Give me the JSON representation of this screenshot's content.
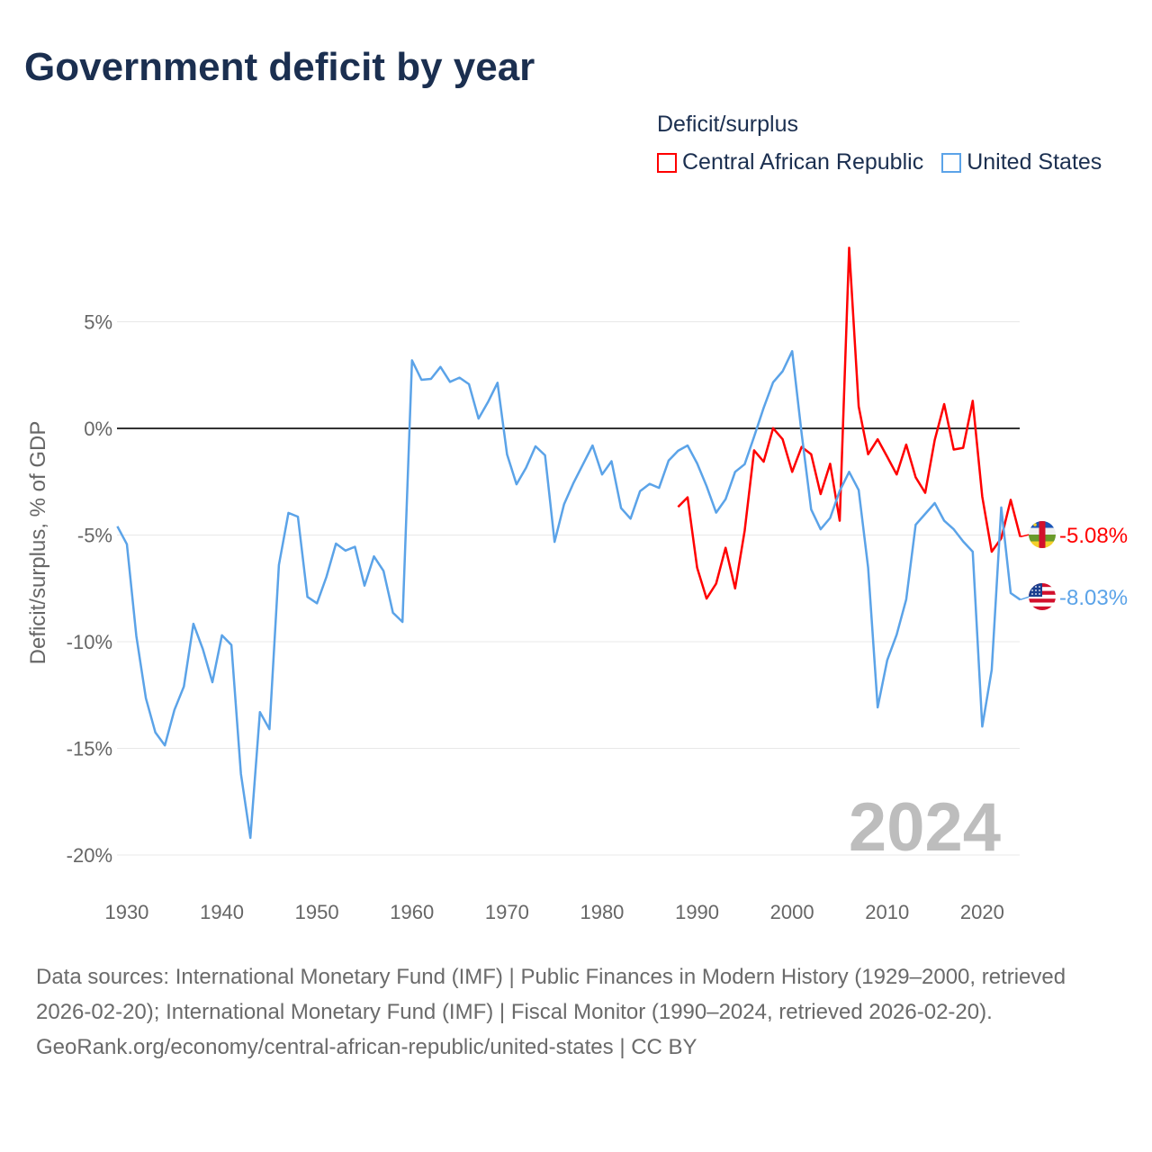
{
  "title": "Government deficit by year",
  "legend": {
    "title": "Deficit/surplus",
    "items": [
      {
        "label": "Central African Republic",
        "color": "#ff0000"
      },
      {
        "label": "United States",
        "color": "#5ba3e8"
      }
    ]
  },
  "chart_data": {
    "type": "line",
    "title": "Government deficit by year",
    "xlabel": "",
    "ylabel": "Deficit/surplus, % of GDP",
    "xlim": [
      1929,
      2024
    ],
    "ylim": [
      -20,
      8.6
    ],
    "x_ticks": [
      "1930",
      "1940",
      "1950",
      "1960",
      "1970",
      "1980",
      "1990",
      "2000",
      "2010",
      "2020"
    ],
    "y_ticks": [
      {
        "value": 5,
        "label": "5%"
      },
      {
        "value": 0,
        "label": "0%"
      },
      {
        "value": -5,
        "label": "-5%"
      },
      {
        "value": -10,
        "label": "-10%"
      },
      {
        "value": -15,
        "label": "-15%"
      },
      {
        "value": -20,
        "label": "-20%"
      }
    ],
    "grid": true,
    "year_watermark": "2024",
    "legend_position": "top-right",
    "series": [
      {
        "name": "Central African Republic",
        "color": "#ff0000",
        "flag": "central-african-republic-flag",
        "end_label": "-5.08%",
        "start_year": 1988,
        "values": [
          -3.68,
          -3.23,
          -6.53,
          -7.98,
          -7.28,
          -5.6,
          -7.5,
          -4.8,
          -1.03,
          -1.56,
          0.01,
          -0.51,
          -2.04,
          -0.87,
          -1.21,
          -3.08,
          -1.66,
          -4.33,
          8.47,
          1.03,
          -1.21,
          -0.51,
          -1.33,
          -2.16,
          -0.76,
          -2.29,
          -3.02,
          -0.54,
          1.14,
          -0.99,
          -0.91,
          1.29,
          -3.2,
          -5.78,
          -5.15,
          -3.35,
          -5.08
        ]
      },
      {
        "name": "United States",
        "color": "#5ba3e8",
        "flag": "united-states-flag",
        "end_label": "-8.03%",
        "start_year": 1929,
        "values": [
          -4.59,
          -5.43,
          -9.74,
          -12.65,
          -14.25,
          -14.86,
          -13.2,
          -12.1,
          -9.16,
          -10.35,
          -11.9,
          -9.7,
          -10.15,
          -16.2,
          -19.2,
          -13.3,
          -14.1,
          -6.4,
          -3.96,
          -4.14,
          -7.9,
          -8.2,
          -6.96,
          -5.4,
          -5.73,
          -5.55,
          -7.37,
          -6.0,
          -6.68,
          -8.64,
          -9.07,
          3.19,
          2.28,
          2.32,
          2.88,
          2.18,
          2.38,
          2.07,
          0.46,
          1.23,
          2.14,
          -1.22,
          -2.62,
          -1.85,
          -0.84,
          -1.26,
          -5.32,
          -3.56,
          -2.55,
          -1.68,
          -0.8,
          -2.16,
          -1.54,
          -3.74,
          -4.23,
          -2.94,
          -2.6,
          -2.79,
          -1.51,
          -1.05,
          -0.8,
          -1.64,
          -2.71,
          -3.95,
          -3.32,
          -2.04,
          -1.68,
          -0.39,
          0.96,
          2.16,
          2.68,
          3.62,
          -0.24,
          -3.8,
          -4.73,
          -4.2,
          -2.93,
          -2.04,
          -2.89,
          -6.53,
          -13.08,
          -10.87,
          -9.67,
          -8.02,
          -4.52,
          -4.01,
          -3.5,
          -4.33,
          -4.73,
          -5.3,
          -5.78,
          -13.98,
          -11.32,
          -3.71,
          -7.72,
          -8.03
        ]
      }
    ]
  },
  "footer": {
    "sources": "Data sources: International Monetary Fund (IMF) | Public Finances in Modern History (1929–2000, retrieved 2026-02-20); International Monetary Fund (IMF) | Fiscal Monitor (1990–2024, retrieved 2026-02-20).",
    "attribution": "GeoRank.org/economy/central-african-republic/united-states | CC BY"
  }
}
